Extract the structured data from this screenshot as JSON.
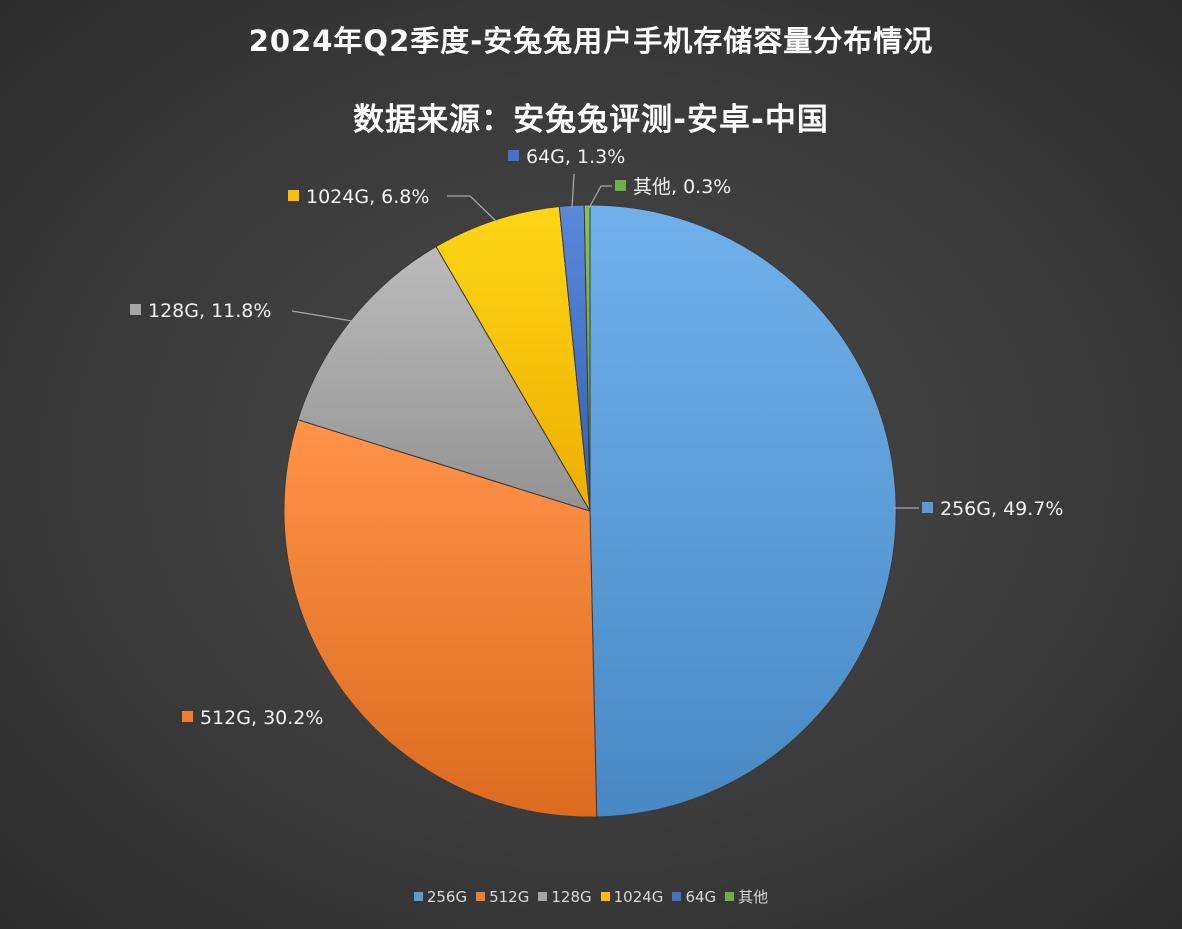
{
  "chart_data": {
    "type": "pie",
    "title": "2024年Q2季度-安兔兔用户手机存储容量分布情况",
    "subtitle": "数据来源：安兔兔评测-安卓-中国",
    "categories": [
      "256G",
      "512G",
      "128G",
      "1024G",
      "64G",
      "其他"
    ],
    "values": [
      49.7,
      30.2,
      11.8,
      6.8,
      1.3,
      0.3
    ],
    "unit": "%",
    "data_labels": [
      "256G, 49.7%",
      "512G, 30.2%",
      "128G, 11.8%",
      "1024G, 6.8%",
      "64G, 1.3%",
      "其他, 0.3%"
    ],
    "colors": [
      "#5b9bd5",
      "#ed7d31",
      "#a5a5a5",
      "#ffc000",
      "#4472c4",
      "#70ad47"
    ],
    "legend": {
      "position": "bottom",
      "items": [
        "256G",
        "512G",
        "128G",
        "1024G",
        "64G",
        "其他"
      ]
    },
    "start_angle": "12 o'clock, clockwise"
  }
}
